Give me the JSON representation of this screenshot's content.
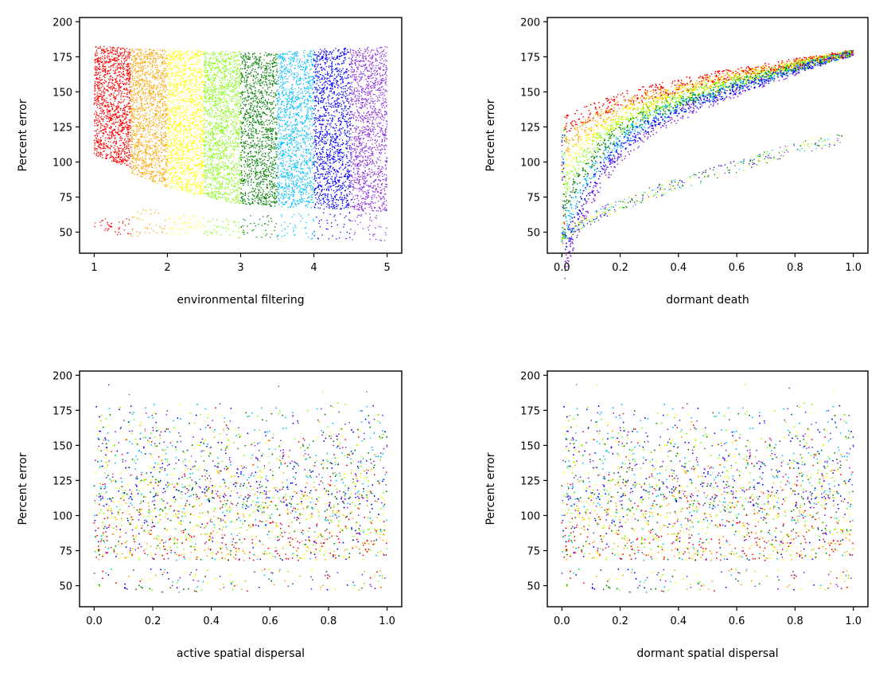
{
  "colors": [
    "#ff0000",
    "#ffa500",
    "#ffff00",
    "#7fff00",
    "#008000",
    "#00bfff",
    "#0000ff",
    "#8a2be2"
  ],
  "chart_data": [
    {
      "type": "scatter",
      "xlabel": "environmental filtering",
      "ylabel": "Percent error",
      "xlim": [
        0.8,
        5.2
      ],
      "ylim": [
        35,
        203
      ],
      "xticks": [
        1,
        2,
        3,
        4,
        5
      ],
      "xtick_labels": [
        "1",
        "2",
        "3",
        "4",
        "5"
      ],
      "yticks": [
        50,
        75,
        100,
        125,
        150,
        175,
        200
      ],
      "ytick_labels": [
        "50",
        "75",
        "100",
        "125",
        "150",
        "175",
        "200"
      ],
      "series": [
        {
          "color": "#ff0000",
          "x_range": [
            1.0,
            1.5
          ],
          "y_upper": [
            183,
            181
          ],
          "y_lower": [
            105,
            96
          ],
          "sparse_below": [
            48,
            60
          ]
        },
        {
          "color": "#ffa500",
          "x_range": [
            1.5,
            2.0
          ],
          "y_upper": [
            181,
            180
          ],
          "y_lower": [
            92,
            82
          ],
          "sparse_below": [
            47,
            66
          ]
        },
        {
          "color": "#ffff00",
          "x_range": [
            2.0,
            2.5
          ],
          "y_upper": [
            180,
            180
          ],
          "y_lower": [
            82,
            75
          ],
          "sparse_below": [
            47,
            62
          ]
        },
        {
          "color": "#7fff00",
          "x_range": [
            2.5,
            3.0
          ],
          "y_upper": [
            179,
            179
          ],
          "y_lower": [
            75,
            70
          ],
          "sparse_below": [
            46,
            60
          ]
        },
        {
          "color": "#008000",
          "x_range": [
            3.0,
            3.5
          ],
          "y_upper": [
            178,
            178
          ],
          "y_lower": [
            70,
            68
          ],
          "sparse_below": [
            46,
            62
          ]
        },
        {
          "color": "#00bfff",
          "x_range": [
            3.5,
            4.0
          ],
          "y_upper": [
            178,
            180
          ],
          "y_lower": [
            68,
            67
          ],
          "sparse_below": [
            45,
            64
          ]
        },
        {
          "color": "#0000ff",
          "x_range": [
            4.0,
            4.5
          ],
          "y_upper": [
            180,
            182
          ],
          "y_lower": [
            66,
            66
          ],
          "sparse_below": [
            45,
            64
          ]
        },
        {
          "color": "#8a2be2",
          "x_range": [
            4.5,
            5.0
          ],
          "y_upper": [
            181,
            183
          ],
          "y_lower": [
            65,
            65
          ],
          "sparse_below": [
            44,
            64
          ]
        }
      ]
    },
    {
      "type": "scatter",
      "xlabel": "dormant death",
      "ylabel": "Percent error",
      "xlim": [
        -0.05,
        1.05
      ],
      "ylim": [
        35,
        203
      ],
      "xticks": [
        0.0,
        0.2,
        0.4,
        0.6,
        0.8,
        1.0
      ],
      "xtick_labels": [
        "0.0",
        "0.2",
        "0.4",
        "0.6",
        "0.8",
        "1.0"
      ],
      "yticks": [
        50,
        75,
        100,
        125,
        150,
        175,
        200
      ],
      "ytick_labels": [
        "50",
        "75",
        "100",
        "125",
        "150",
        "175",
        "200"
      ],
      "main_band": {
        "start": [
          110,
          175
        ],
        "end": [
          178,
          182
        ],
        "color_order": "red on top to purple on bottom"
      },
      "lower_branch": {
        "start": 45,
        "end": 118,
        "x_range": [
          0.0,
          0.97
        ]
      }
    },
    {
      "type": "scatter",
      "xlabel": "active spatial dispersal",
      "ylabel": "Percent error",
      "xlim": [
        -0.05,
        1.05
      ],
      "ylim": [
        35,
        203
      ],
      "xticks": [
        0.0,
        0.2,
        0.4,
        0.6,
        0.8,
        1.0
      ],
      "xtick_labels": [
        "0.0",
        "0.2",
        "0.4",
        "0.6",
        "0.8",
        "1.0"
      ],
      "yticks": [
        50,
        75,
        100,
        125,
        150,
        175,
        200
      ],
      "ytick_labels": [
        "50",
        "75",
        "100",
        "125",
        "150",
        "175",
        "200"
      ],
      "x_range": [
        0.0,
        1.0
      ],
      "y_range": [
        45,
        190
      ]
    },
    {
      "type": "scatter",
      "xlabel": "dormant spatial dispersal",
      "ylabel": "Percent error",
      "xlim": [
        -0.05,
        1.05
      ],
      "ylim": [
        35,
        203
      ],
      "xticks": [
        0.0,
        0.2,
        0.4,
        0.6,
        0.8,
        1.0
      ],
      "xtick_labels": [
        "0.0",
        "0.2",
        "0.4",
        "0.6",
        "0.8",
        "1.0"
      ],
      "yticks": [
        50,
        75,
        100,
        125,
        150,
        175,
        200
      ],
      "ytick_labels": [
        "50",
        "75",
        "100",
        "125",
        "150",
        "175",
        "200"
      ],
      "x_range": [
        0.0,
        1.0
      ],
      "y_range": [
        45,
        190
      ]
    }
  ]
}
